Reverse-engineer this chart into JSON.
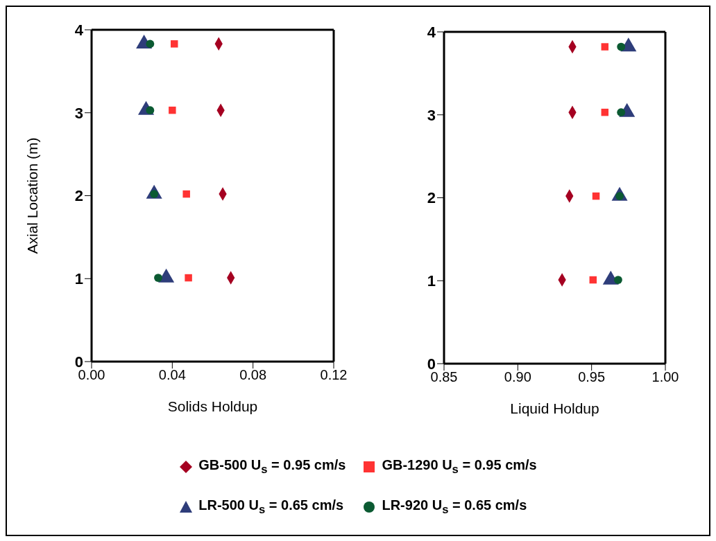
{
  "chart_data": [
    {
      "type": "scatter",
      "xlabel": "Solids Holdup",
      "ylabel": "Axial Location (m)",
      "xlim": [
        0,
        0.12
      ],
      "xticks": [
        {
          "value": 0,
          "label": "0.00"
        },
        {
          "value": 0.04,
          "label": "0.04"
        },
        {
          "value": 0.08,
          "label": "0.08"
        },
        {
          "value": 0.12,
          "label": "0.12"
        }
      ],
      "ylim": [
        0,
        4
      ],
      "yticks": [
        0,
        1,
        2,
        3,
        4
      ],
      "grid": false,
      "legend": "bottom",
      "series": [
        {
          "name": "GB-500 U$_{s}$ = 0.95 cm/s",
          "color": "#a50021",
          "marker": "diamond",
          "x": [
            0.063,
            0.064,
            0.065,
            0.069
          ],
          "values": [
            3.83,
            3.03,
            2.02,
            1.01
          ]
        },
        {
          "name": "GB-1290 U$_{s}$ = 0.95 cm/s",
          "color": "#ff3333",
          "marker": "square",
          "x": [
            0.041,
            0.04,
            0.047,
            0.048
          ],
          "values": [
            3.83,
            3.03,
            2.02,
            1.01
          ]
        },
        {
          "name": "LR-500 U$_{s}$ = 0.65 cm/s",
          "color": "#2e3d7a",
          "marker": "triangle",
          "x": [
            0.026,
            0.027,
            0.031,
            0.037
          ],
          "values": [
            3.83,
            3.03,
            2.02,
            1.01
          ]
        },
        {
          "name": "LR-920 U$_{s}$ = 0.65 cm/s",
          "color": "#0b5a32",
          "marker": "circle",
          "x": [
            0.029,
            0.029,
            0.031,
            0.033
          ],
          "values": [
            3.83,
            3.03,
            2.02,
            1.01
          ]
        }
      ]
    },
    {
      "type": "scatter",
      "xlabel": "Liquid Holdup",
      "xlim": [
        0.85,
        1.0
      ],
      "xticks": [
        {
          "value": 0.85,
          "label": "0.85"
        },
        {
          "value": 0.9,
          "label": "0.90"
        },
        {
          "value": 0.95,
          "label": "0.95"
        },
        {
          "value": 1.0,
          "label": "1.00"
        }
      ],
      "ylim": [
        0,
        4
      ],
      "yticks": [
        0,
        1,
        2,
        3,
        4
      ],
      "grid": false,
      "series": [
        {
          "color": "#a50021",
          "marker": "diamond",
          "x": [
            0.937,
            0.937,
            0.935,
            0.93
          ],
          "values": [
            3.82,
            3.03,
            2.02,
            1.01
          ]
        },
        {
          "color": "#ff3333",
          "marker": "square",
          "x": [
            0.959,
            0.959,
            0.953,
            0.951
          ],
          "values": [
            3.82,
            3.03,
            2.02,
            1.01
          ]
        },
        {
          "color": "#2e3d7a",
          "marker": "triangle",
          "x": [
            0.975,
            0.974,
            0.969,
            0.963
          ],
          "values": [
            3.82,
            3.03,
            2.02,
            1.01
          ]
        },
        {
          "color": "#0b5a32",
          "marker": "circle",
          "x": [
            0.97,
            0.97,
            0.969,
            0.968
          ],
          "values": [
            3.82,
            3.03,
            2.02,
            1.01
          ]
        }
      ]
    }
  ]
}
